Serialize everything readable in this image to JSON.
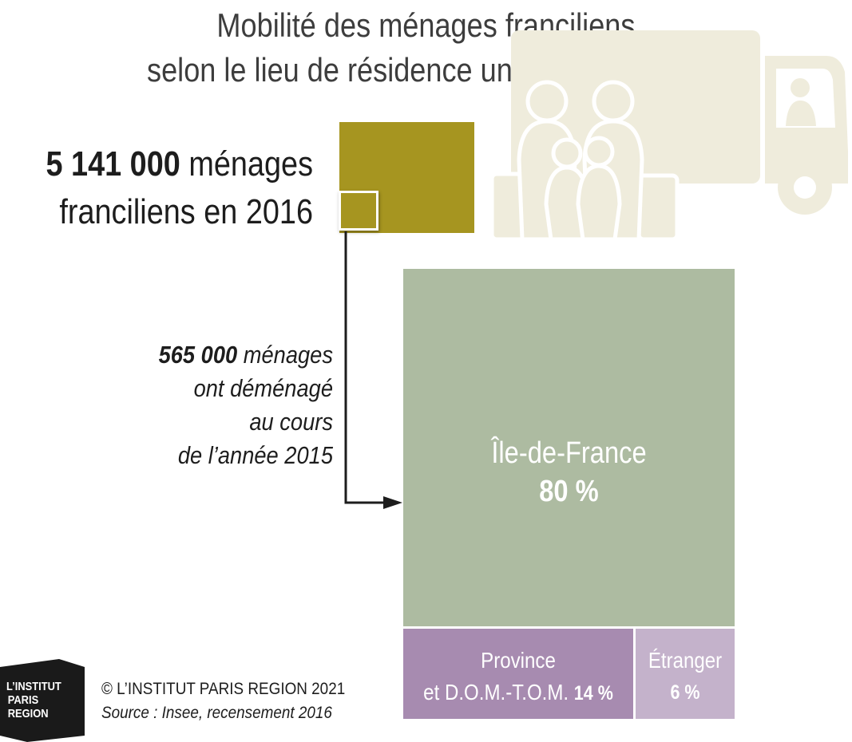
{
  "title_line1": "Mobilité des ménages franciliens",
  "title_line2": "selon le lieu de résidence un an auparavant",
  "total": {
    "number": "5 141 000",
    "text_line1_rest": " ménages",
    "text_line2": "franciliens en 2016"
  },
  "moved": {
    "number": "565 000",
    "line1_rest": " ménages",
    "line2": "ont déménagé",
    "line3": "au cours",
    "line4": "de l’année 2015"
  },
  "colors": {
    "total": "#a69520",
    "idf": "#adbba1",
    "province": "#a78bb0",
    "etranger": "#c4b2cb",
    "illustration": "#efecdc"
  },
  "chart_data": {
    "type": "treemap",
    "title": "Mobilité des ménages franciliens selon le lieu de résidence un an auparavant",
    "total_households": 5141000,
    "moved_households": 565000,
    "year_total": 2016,
    "year_moved": 2015,
    "categories": [
      "Île-de-France",
      "Province et D.O.M.-T.O.M.",
      "Étranger"
    ],
    "values": [
      80,
      14,
      6
    ],
    "unit": "%",
    "labels": {
      "idf_name": "Île-de-France",
      "idf_pct": "80 %",
      "prov_line1": "Province",
      "prov_line2": "et D.O.M.-T.O.M.",
      "prov_pct": "14 %",
      "etr_name": "Étranger",
      "etr_pct": "6 %"
    }
  },
  "footer": {
    "copyright": "© L’INSTITUT PARIS REGION 2021",
    "source": "Source : Insee, recensement 2016"
  },
  "logo": {
    "line1": "L’INSTITUT",
    "line2": "PARIS",
    "line3": "REGION"
  },
  "icons": {
    "illustration": "family-moving-truck-icon",
    "arrow": "arrow-right-icon"
  }
}
